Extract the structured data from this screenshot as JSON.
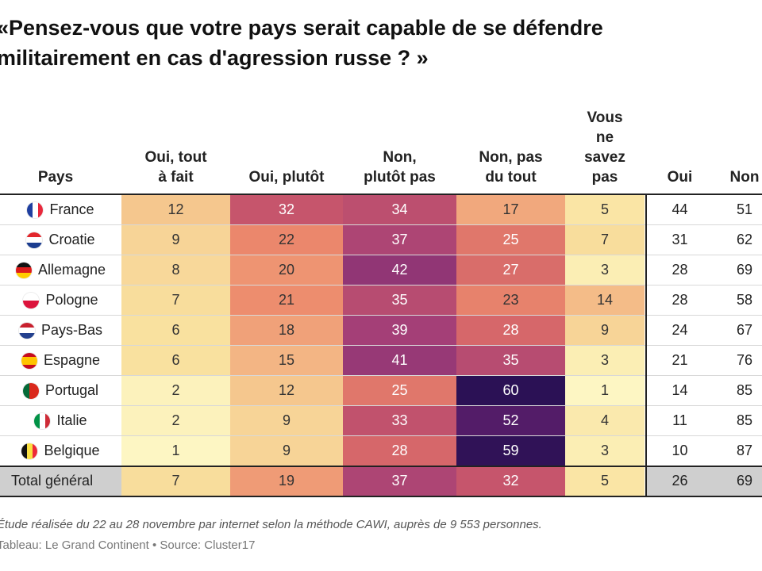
{
  "title_lines": [
    "«Pensez-vous que votre pays serait capable de se défendre",
    "militairement en cas d'agression russe ? »"
  ],
  "chart_data": {
    "type": "table",
    "columns": {
      "country": "Pays",
      "detail": [
        [
          "Oui, tout",
          "à fait"
        ],
        [
          "Oui, plutôt"
        ],
        [
          "Non,",
          "plutôt pas"
        ],
        [
          "Non, pas",
          "du tout"
        ],
        [
          "Vous",
          "ne",
          "savez",
          "pas"
        ]
      ],
      "sums": [
        "Oui",
        "Non"
      ]
    },
    "rows": [
      {
        "country": "France",
        "flag": "france-flag-icon",
        "values": [
          12,
          32,
          34,
          17,
          5
        ],
        "oui": 44,
        "non": 51
      },
      {
        "country": "Croatie",
        "flag": "croatia-flag-icon",
        "values": [
          9,
          22,
          37,
          25,
          7
        ],
        "oui": 31,
        "non": 62
      },
      {
        "country": "Allemagne",
        "flag": "germany-flag-icon",
        "values": [
          8,
          20,
          42,
          27,
          3
        ],
        "oui": 28,
        "non": 69
      },
      {
        "country": "Pologne",
        "flag": "poland-flag-icon",
        "values": [
          7,
          21,
          35,
          23,
          14
        ],
        "oui": 28,
        "non": 58
      },
      {
        "country": "Pays-Bas",
        "flag": "netherlands-flag-icon",
        "values": [
          6,
          18,
          39,
          28,
          9
        ],
        "oui": 24,
        "non": 67
      },
      {
        "country": "Espagne",
        "flag": "spain-flag-icon",
        "values": [
          6,
          15,
          41,
          35,
          3
        ],
        "oui": 21,
        "non": 76
      },
      {
        "country": "Portugal",
        "flag": "portugal-flag-icon",
        "values": [
          2,
          12,
          25,
          60,
          1
        ],
        "oui": 14,
        "non": 85
      },
      {
        "country": "Italie",
        "flag": "italy-flag-icon",
        "values": [
          2,
          9,
          33,
          52,
          4
        ],
        "oui": 11,
        "non": 85
      },
      {
        "country": "Belgique",
        "flag": "belgium-flag-icon",
        "values": [
          1,
          9,
          28,
          59,
          3
        ],
        "oui": 10,
        "non": 87
      }
    ],
    "total": {
      "country": "Total général",
      "values": [
        7,
        19,
        37,
        32,
        5
      ],
      "oui": 26,
      "non": 69
    },
    "color_scale": {
      "min": 1,
      "max": 60,
      "low_color": "#fdf6c3",
      "high_color": "#2b1155"
    }
  },
  "footnote": "Étude réalisée du 22 au 28 novembre par internet selon la méthode CAWI, auprès de 9 553 personnes.",
  "credit": "Tableau: Le Grand Continent • Source: Cluster17"
}
